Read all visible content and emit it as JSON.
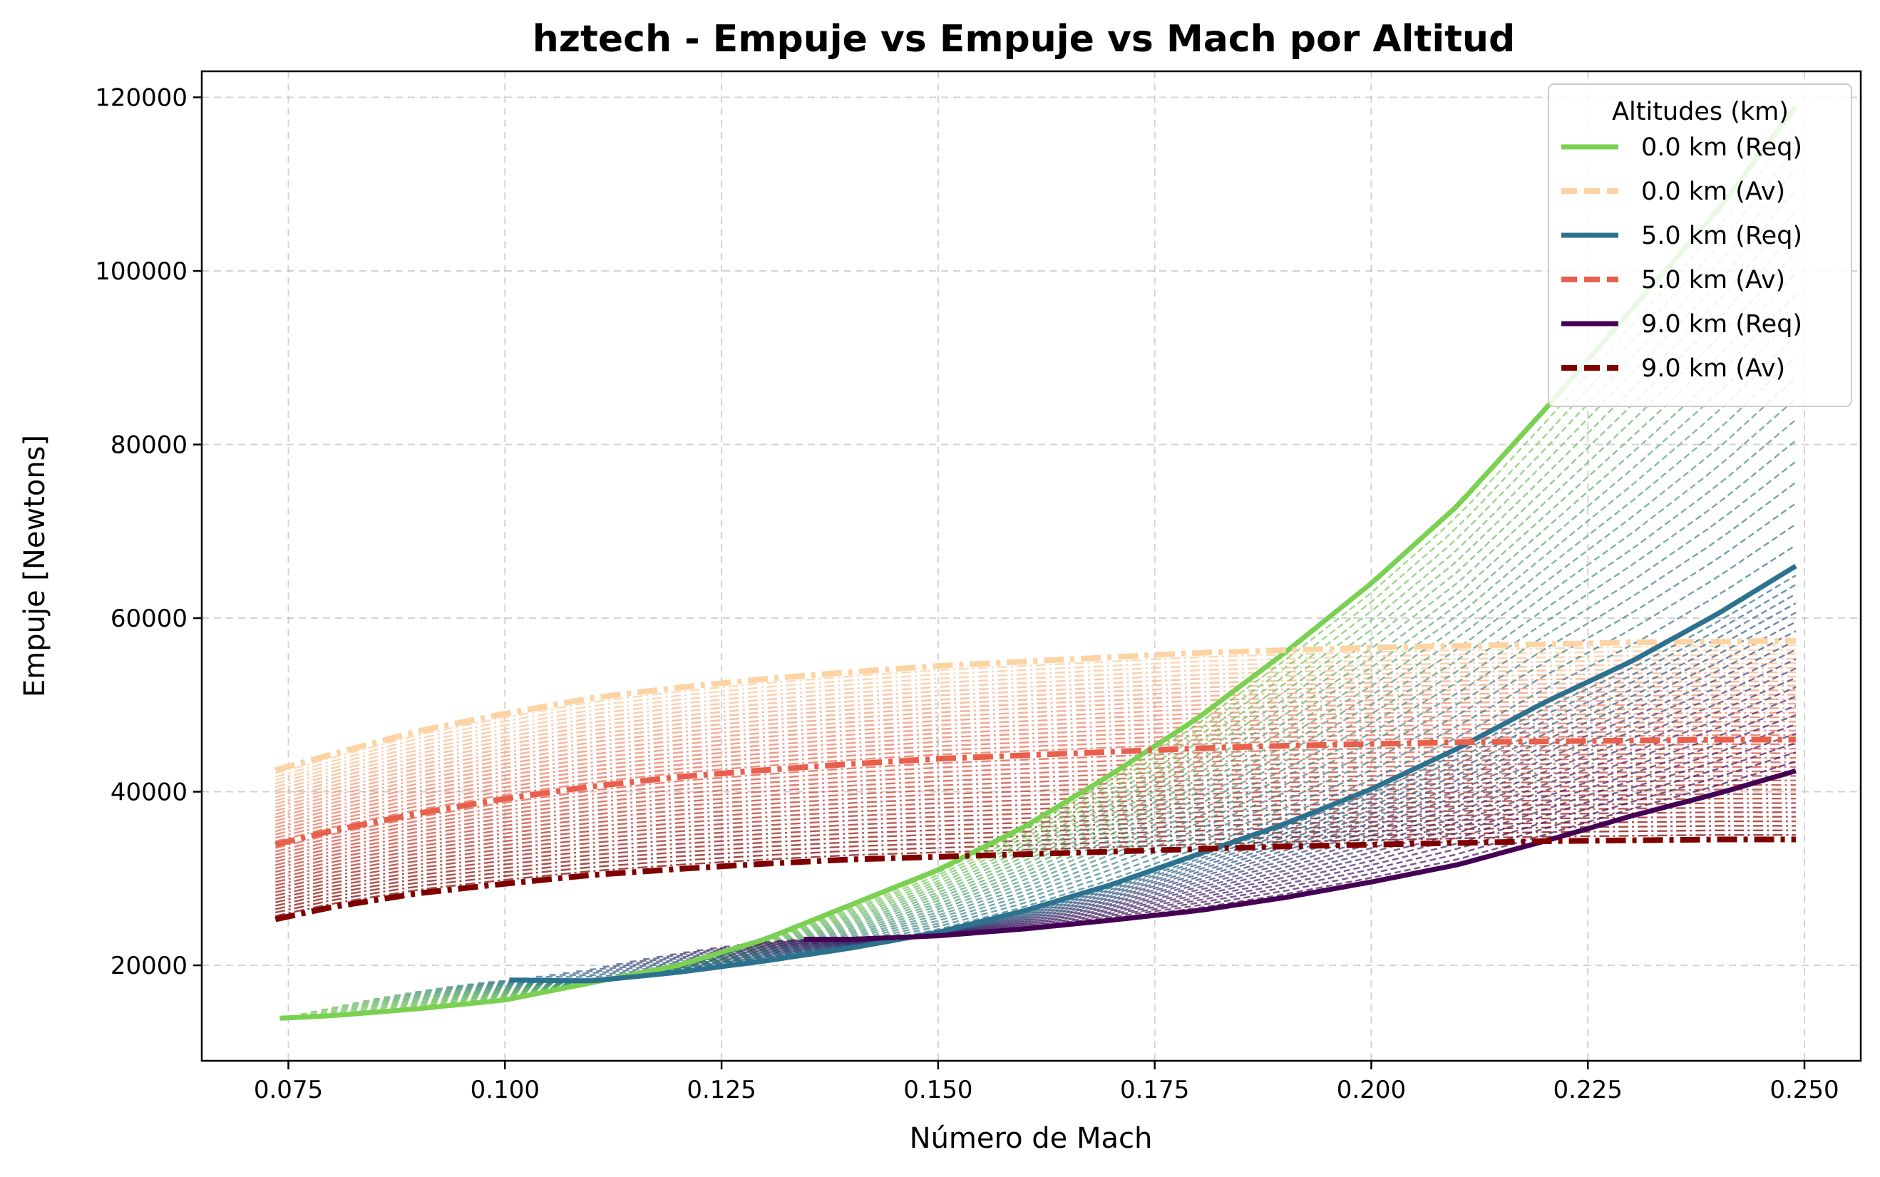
{
  "chart_data": {
    "type": "line",
    "title": "hztech - Empuje vs Empuje vs Mach por Altitud",
    "xlabel": "Número de Mach",
    "ylabel": "Empuje [Newtons]",
    "xlim": [
      0.065,
      0.2565
    ],
    "ylim": [
      9000,
      123000
    ],
    "xticks": [
      0.075,
      0.1,
      0.125,
      0.15,
      0.175,
      0.2,
      0.225,
      0.25
    ],
    "xtick_labels": [
      "0.075",
      "0.100",
      "0.125",
      "0.150",
      "0.175",
      "0.200",
      "0.225",
      "0.250"
    ],
    "yticks": [
      20000,
      40000,
      60000,
      80000,
      100000,
      120000
    ],
    "ytick_labels": [
      "20000",
      "40000",
      "60000",
      "80000",
      "100000",
      "120000"
    ],
    "grid": true,
    "legend": {
      "title": "Altitudes (km)",
      "placement": "upper-right"
    },
    "series": [
      {
        "name": "0.0 km (Req)",
        "kind": "required",
        "altitude_km": 0.0,
        "color": "#7ad151",
        "x": [
          0.074,
          0.08,
          0.09,
          0.1,
          0.11,
          0.12,
          0.13,
          0.14,
          0.15,
          0.16,
          0.17,
          0.18,
          0.19,
          0.2,
          0.21,
          0.22,
          0.23,
          0.24,
          0.249
        ],
        "y": [
          13900,
          14200,
          15000,
          16000,
          18000,
          20000,
          23000,
          27000,
          31000,
          36000,
          42000,
          48500,
          56000,
          64000,
          73000,
          84000,
          95500,
          107000,
          119000
        ]
      },
      {
        "name": "0.0 km (Av)",
        "kind": "available",
        "altitude_km": 0.0,
        "color": "#fcd4a4",
        "x": [
          0.0735,
          0.08,
          0.09,
          0.1,
          0.11,
          0.12,
          0.13,
          0.14,
          0.15,
          0.16,
          0.17,
          0.18,
          0.19,
          0.2,
          0.21,
          0.22,
          0.23,
          0.24,
          0.249
        ],
        "y": [
          42500,
          44300,
          47000,
          49000,
          50800,
          52000,
          53000,
          53800,
          54500,
          55000,
          55500,
          56000,
          56300,
          56600,
          56800,
          57000,
          57200,
          57300,
          57400
        ]
      },
      {
        "name": "5.0 km (Req)",
        "kind": "required",
        "altitude_km": 5.0,
        "color": "#2c728e",
        "x": [
          0.1005,
          0.11,
          0.12,
          0.13,
          0.14,
          0.15,
          0.16,
          0.17,
          0.18,
          0.19,
          0.2,
          0.21,
          0.22,
          0.23,
          0.24,
          0.249
        ],
        "y": [
          18300,
          18200,
          19200,
          20500,
          22000,
          23800,
          26300,
          29300,
          32800,
          36300,
          40300,
          45000,
          50300,
          55000,
          60500,
          66000
        ]
      },
      {
        "name": "5.0 km (Av)",
        "kind": "available",
        "altitude_km": 5.0,
        "color": "#e8604c",
        "x": [
          0.0735,
          0.08,
          0.09,
          0.1,
          0.11,
          0.12,
          0.13,
          0.14,
          0.15,
          0.16,
          0.17,
          0.18,
          0.19,
          0.2,
          0.21,
          0.22,
          0.23,
          0.24,
          0.249
        ],
        "y": [
          33900,
          35500,
          37500,
          39200,
          40600,
          41700,
          42500,
          43200,
          43800,
          44200,
          44600,
          45000,
          45300,
          45500,
          45700,
          45800,
          45900,
          46000,
          46000
        ]
      },
      {
        "name": "9.0 km (Req)",
        "kind": "required",
        "altitude_km": 9.0,
        "color": "#440154",
        "x": [
          0.1345,
          0.14,
          0.15,
          0.16,
          0.17,
          0.18,
          0.19,
          0.2,
          0.21,
          0.22,
          0.23,
          0.24,
          0.249
        ],
        "y": [
          23000,
          23000,
          23400,
          24200,
          25200,
          26300,
          27800,
          29600,
          31600,
          34300,
          37200,
          39800,
          42400
        ]
      },
      {
        "name": "9.0 km (Av)",
        "kind": "available",
        "altitude_km": 9.0,
        "color": "#800000",
        "x": [
          0.0735,
          0.08,
          0.09,
          0.1,
          0.11,
          0.12,
          0.13,
          0.14,
          0.15,
          0.16,
          0.17,
          0.18,
          0.19,
          0.2,
          0.21,
          0.22,
          0.23,
          0.24,
          0.249
        ],
        "y": [
          25300,
          26700,
          28300,
          29400,
          30400,
          31100,
          31700,
          32200,
          32500,
          32800,
          33100,
          33400,
          33700,
          33900,
          34100,
          34300,
          34400,
          34500,
          34500
        ]
      }
    ]
  }
}
